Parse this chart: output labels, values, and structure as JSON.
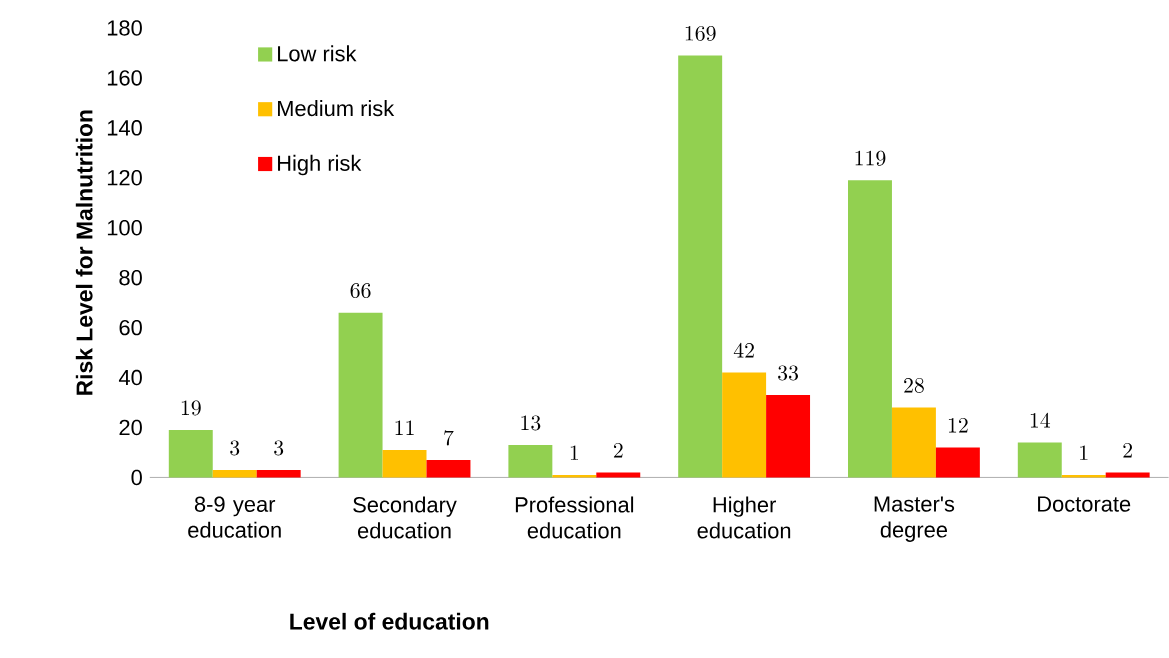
{
  "chart_data": {
    "type": "bar",
    "xlabel": "Level of education",
    "ylabel": "Risk Level for Malnutrition",
    "categories": [
      "8-9 year education",
      "Secondary education",
      "Professional education",
      "Higher education",
      "Master's degree",
      "Doctorate"
    ],
    "series": [
      {
        "name": "Low risk",
        "color": "#92d050",
        "values": [
          19,
          66,
          13,
          169,
          119,
          14
        ]
      },
      {
        "name": "Medium risk",
        "color": "#ffc000",
        "values": [
          3,
          11,
          1,
          42,
          28,
          1
        ]
      },
      {
        "name": "High risk",
        "color": "#ff0000",
        "values": [
          3,
          7,
          2,
          33,
          12,
          2
        ]
      }
    ],
    "ylim": [
      0,
      180
    ],
    "yticks": [
      0,
      20,
      40,
      60,
      80,
      100,
      120,
      140,
      160,
      180
    ],
    "data_labels": true,
    "legend": "top left",
    "grid": false
  }
}
